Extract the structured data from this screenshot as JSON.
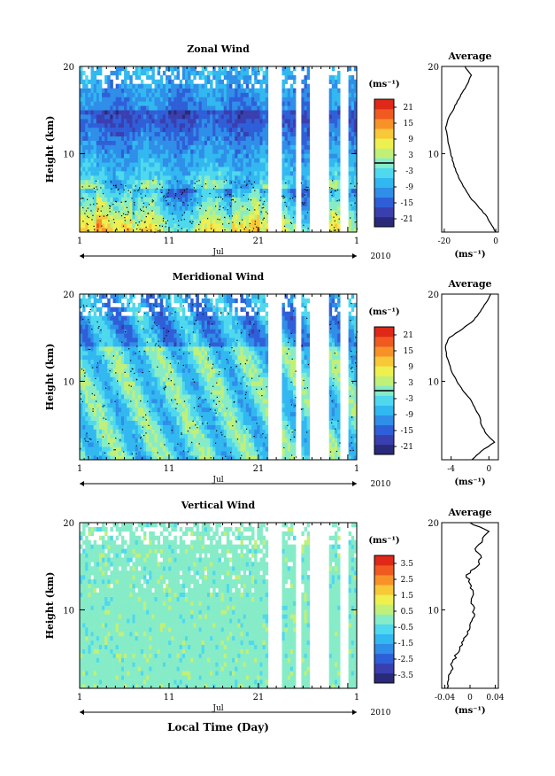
{
  "figure": {
    "year_label": "2010",
    "xaxis_title": "Local Time (Day)",
    "month_label": "Jul",
    "x_tick_labels": [
      "1",
      "11",
      "21",
      "1"
    ]
  },
  "colormap": [
    "#2a2a7a",
    "#3a3fb0",
    "#2f5fd8",
    "#2f8ee8",
    "#32b8f0",
    "#4fd8ee",
    "#86ecc8",
    "#c0f078",
    "#eef050",
    "#f8c838",
    "#f89228",
    "#f05a20",
    "#e02818"
  ],
  "chart_data": [
    {
      "type": "heatmap",
      "title": "Zonal Wind",
      "ylabel": "Height (km)",
      "xlabel": "",
      "xlim": [
        1,
        32
      ],
      "ylim": [
        1,
        20
      ],
      "x_ticks": [
        1,
        11,
        21,
        32
      ],
      "y_ticks": [
        10,
        20
      ],
      "colorbar": {
        "unit": "(ms⁻¹)",
        "ticks": [
          21,
          15,
          9,
          3,
          -3,
          -9,
          -15,
          -21
        ],
        "zero_line": 0
      },
      "profile": {
        "title": "Average",
        "xlabel": "(ms⁻¹)",
        "xlim": [
          -21,
          1
        ],
        "x_ticks": [
          -20,
          0
        ],
        "x_tick_labels": [
          "-20",
          "0"
        ],
        "heights": [
          1,
          2,
          3,
          4,
          5,
          6,
          7,
          8,
          9,
          10,
          11,
          12,
          13,
          14,
          15,
          16,
          17,
          18,
          19,
          20
        ],
        "values": [
          0,
          -2,
          -4,
          -7,
          -10,
          -12,
          -14,
          -15.5,
          -16.5,
          -17.5,
          -18.2,
          -18.8,
          -19.5,
          -18.5,
          -16.5,
          -15,
          -13,
          -11,
          -9.5,
          -12
        ]
      }
    },
    {
      "type": "heatmap",
      "title": "Meridional Wind",
      "ylabel": "Height (km)",
      "xlabel": "",
      "xlim": [
        1,
        32
      ],
      "ylim": [
        1,
        20
      ],
      "x_ticks": [
        1,
        11,
        21,
        32
      ],
      "y_ticks": [
        10,
        20
      ],
      "colorbar": {
        "unit": "(ms⁻¹)",
        "ticks": [
          21,
          15,
          9,
          3,
          -3,
          -9,
          -15,
          -21
        ],
        "zero_line": 0
      },
      "profile": {
        "title": "Average",
        "xlabel": "(ms⁻¹)",
        "xlim": [
          -5,
          1
        ],
        "x_ticks": [
          -4,
          0
        ],
        "x_tick_labels": [
          "-4",
          "0"
        ],
        "heights": [
          1,
          2,
          3,
          4,
          5,
          6,
          7,
          8,
          9,
          10,
          11,
          12,
          13,
          14,
          15,
          16,
          17,
          18,
          19,
          20
        ],
        "values": [
          -1.8,
          -0.8,
          0.6,
          -0.3,
          -0.8,
          -1.0,
          -1.5,
          -2.0,
          -2.8,
          -3.4,
          -3.9,
          -4.2,
          -4.5,
          -4.6,
          -4.2,
          -2.8,
          -1.6,
          -0.9,
          -0.3,
          0.2
        ]
      }
    },
    {
      "type": "heatmap",
      "title": "Vertical Wind",
      "ylabel": "Height (km)",
      "xlabel": "",
      "xlim": [
        1,
        32
      ],
      "ylim": [
        1,
        20
      ],
      "x_ticks": [
        1,
        11,
        21,
        32
      ],
      "y_ticks": [
        10,
        20
      ],
      "colorbar": {
        "unit": "(ms⁻¹)",
        "ticks": [
          3.5,
          2.5,
          1.5,
          0.5,
          -0.5,
          -1.5,
          -2.5,
          -3.5
        ],
        "zero_line": null
      },
      "profile": {
        "title": "Average",
        "xlabel": "(ms⁻¹)",
        "xlim": [
          -0.045,
          0.045
        ],
        "x_ticks": [
          -0.04,
          0,
          0.04
        ],
        "x_tick_labels": [
          "-0.04",
          "0",
          "0.04"
        ],
        "heights": [
          1,
          2,
          3,
          4,
          5,
          6,
          7,
          8,
          9,
          10,
          11,
          12,
          13,
          14,
          15,
          16,
          17,
          18,
          19,
          20
        ],
        "values": [
          -0.036,
          -0.034,
          -0.03,
          -0.028,
          -0.02,
          -0.012,
          -0.006,
          0.0,
          0.004,
          0.006,
          0.002,
          0.005,
          0.0,
          -0.006,
          0.012,
          0.018,
          0.008,
          0.02,
          0.03,
          0.0
        ]
      }
    }
  ]
}
